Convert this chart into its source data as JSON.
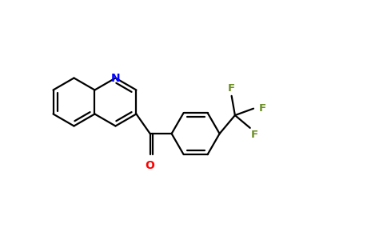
{
  "background_color": "#ffffff",
  "bond_color": "#000000",
  "N_color": "#0000ff",
  "O_color": "#ff0000",
  "F_color": "#6b8e23",
  "bond_width": 1.6,
  "figsize": [
    4.84,
    3.0
  ],
  "dpi": 100,
  "xlim": [
    0,
    9.68
  ],
  "ylim": [
    0,
    6.0
  ]
}
